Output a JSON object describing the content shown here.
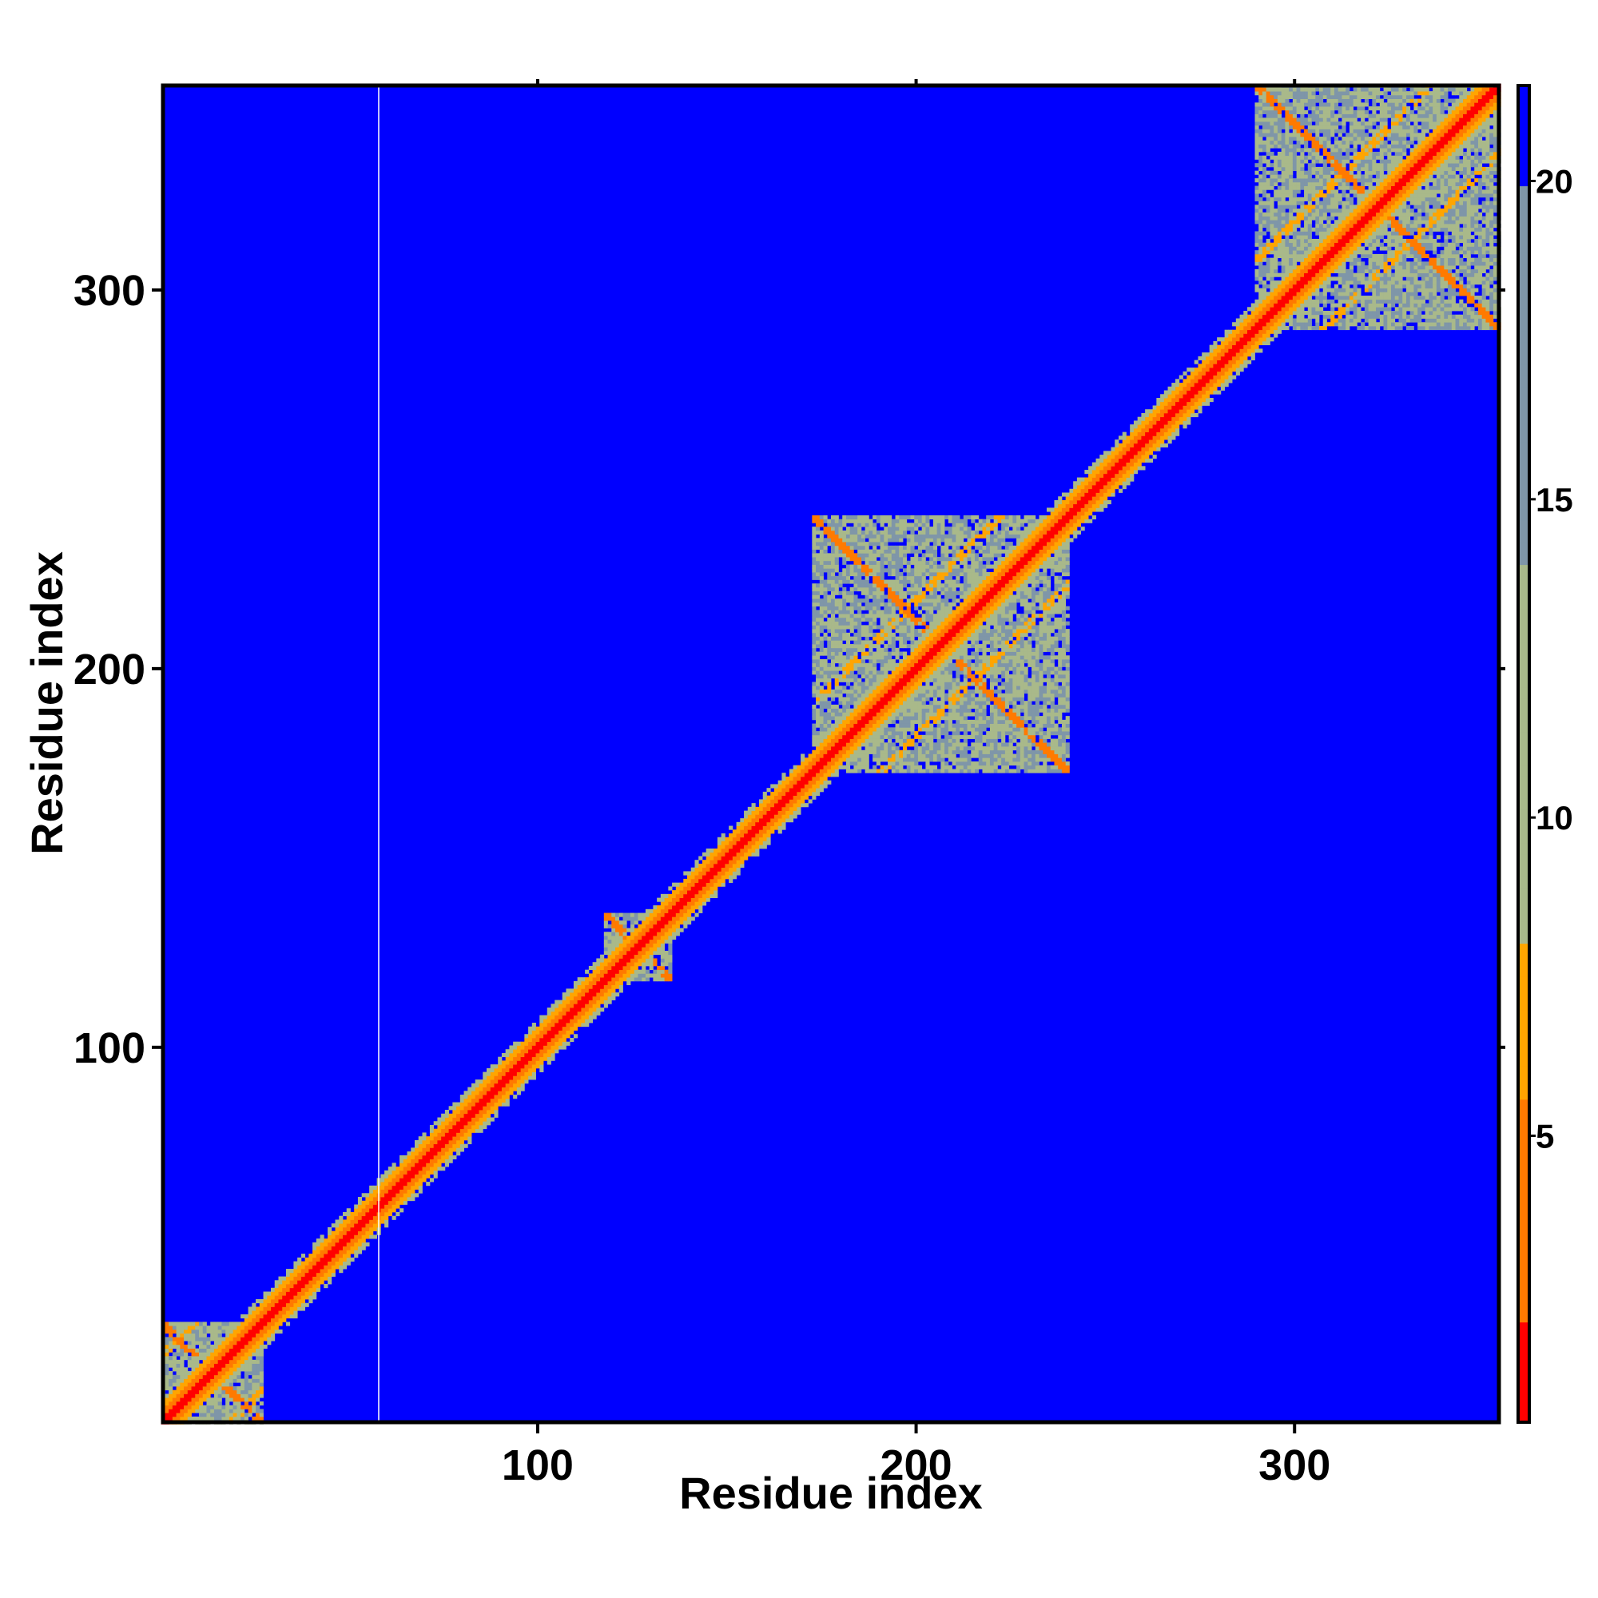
{
  "chart_data": {
    "type": "heatmap",
    "title": "",
    "xlabel": "Residue index",
    "ylabel": "Residue index",
    "xlim": [
      1,
      354
    ],
    "ylim": [
      1,
      354
    ],
    "x_ticks": [
      100,
      200,
      300
    ],
    "y_ticks": [
      100,
      200,
      300
    ],
    "x_tick_labels": [
      "100",
      "200",
      "300"
    ],
    "y_tick_labels": [
      "100",
      "200",
      "300"
    ],
    "colorbar": {
      "range": [
        0.5,
        21.5
      ],
      "ticks": [
        5,
        10,
        15,
        20
      ],
      "tick_labels": [
        "5",
        "10",
        "15",
        "20"
      ],
      "colors": [
        "#ff0000",
        "#ff7a00",
        "#ffa500",
        "#a9b98a",
        "#7f96a8",
        "#0000ff"
      ]
    },
    "background_value": 21.5,
    "background_color": "#0000ff",
    "vertical_line_x": 58,
    "matrix_description_values": {
      "diagonal_value": 1,
      "near_diagonal_value": 4,
      "cluster_fill_value": 11
    },
    "domains": [
      {
        "start": 1,
        "end": 27
      },
      {
        "start": 118,
        "end": 135
      },
      {
        "start": 173,
        "end": 240
      },
      {
        "start": 290,
        "end": 354
      }
    ]
  }
}
